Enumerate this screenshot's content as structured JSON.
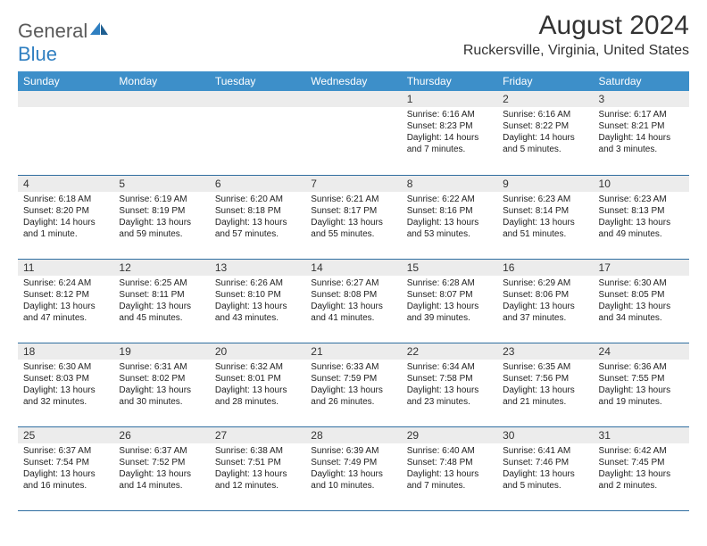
{
  "logo": {
    "text1": "General",
    "text2": "Blue"
  },
  "title": "August 2024",
  "location": "Ruckersville, Virginia, United States",
  "colors": {
    "header_bg": "#3d8fc9",
    "header_text": "#ffffff",
    "daynum_bg": "#ececec",
    "row_border": "#2f6ea0",
    "logo_gray": "#5a5a5a",
    "logo_blue": "#2f7fc1"
  },
  "weekdays": [
    "Sunday",
    "Monday",
    "Tuesday",
    "Wednesday",
    "Thursday",
    "Friday",
    "Saturday"
  ],
  "weeks": [
    [
      {
        "empty": true
      },
      {
        "empty": true
      },
      {
        "empty": true
      },
      {
        "empty": true
      },
      {
        "num": "1",
        "sunrise": "Sunrise: 6:16 AM",
        "sunset": "Sunset: 8:23 PM",
        "daylight": "Daylight: 14 hours and 7 minutes."
      },
      {
        "num": "2",
        "sunrise": "Sunrise: 6:16 AM",
        "sunset": "Sunset: 8:22 PM",
        "daylight": "Daylight: 14 hours and 5 minutes."
      },
      {
        "num": "3",
        "sunrise": "Sunrise: 6:17 AM",
        "sunset": "Sunset: 8:21 PM",
        "daylight": "Daylight: 14 hours and 3 minutes."
      }
    ],
    [
      {
        "num": "4",
        "sunrise": "Sunrise: 6:18 AM",
        "sunset": "Sunset: 8:20 PM",
        "daylight": "Daylight: 14 hours and 1 minute."
      },
      {
        "num": "5",
        "sunrise": "Sunrise: 6:19 AM",
        "sunset": "Sunset: 8:19 PM",
        "daylight": "Daylight: 13 hours and 59 minutes."
      },
      {
        "num": "6",
        "sunrise": "Sunrise: 6:20 AM",
        "sunset": "Sunset: 8:18 PM",
        "daylight": "Daylight: 13 hours and 57 minutes."
      },
      {
        "num": "7",
        "sunrise": "Sunrise: 6:21 AM",
        "sunset": "Sunset: 8:17 PM",
        "daylight": "Daylight: 13 hours and 55 minutes."
      },
      {
        "num": "8",
        "sunrise": "Sunrise: 6:22 AM",
        "sunset": "Sunset: 8:16 PM",
        "daylight": "Daylight: 13 hours and 53 minutes."
      },
      {
        "num": "9",
        "sunrise": "Sunrise: 6:23 AM",
        "sunset": "Sunset: 8:14 PM",
        "daylight": "Daylight: 13 hours and 51 minutes."
      },
      {
        "num": "10",
        "sunrise": "Sunrise: 6:23 AM",
        "sunset": "Sunset: 8:13 PM",
        "daylight": "Daylight: 13 hours and 49 minutes."
      }
    ],
    [
      {
        "num": "11",
        "sunrise": "Sunrise: 6:24 AM",
        "sunset": "Sunset: 8:12 PM",
        "daylight": "Daylight: 13 hours and 47 minutes."
      },
      {
        "num": "12",
        "sunrise": "Sunrise: 6:25 AM",
        "sunset": "Sunset: 8:11 PM",
        "daylight": "Daylight: 13 hours and 45 minutes."
      },
      {
        "num": "13",
        "sunrise": "Sunrise: 6:26 AM",
        "sunset": "Sunset: 8:10 PM",
        "daylight": "Daylight: 13 hours and 43 minutes."
      },
      {
        "num": "14",
        "sunrise": "Sunrise: 6:27 AM",
        "sunset": "Sunset: 8:08 PM",
        "daylight": "Daylight: 13 hours and 41 minutes."
      },
      {
        "num": "15",
        "sunrise": "Sunrise: 6:28 AM",
        "sunset": "Sunset: 8:07 PM",
        "daylight": "Daylight: 13 hours and 39 minutes."
      },
      {
        "num": "16",
        "sunrise": "Sunrise: 6:29 AM",
        "sunset": "Sunset: 8:06 PM",
        "daylight": "Daylight: 13 hours and 37 minutes."
      },
      {
        "num": "17",
        "sunrise": "Sunrise: 6:30 AM",
        "sunset": "Sunset: 8:05 PM",
        "daylight": "Daylight: 13 hours and 34 minutes."
      }
    ],
    [
      {
        "num": "18",
        "sunrise": "Sunrise: 6:30 AM",
        "sunset": "Sunset: 8:03 PM",
        "daylight": "Daylight: 13 hours and 32 minutes."
      },
      {
        "num": "19",
        "sunrise": "Sunrise: 6:31 AM",
        "sunset": "Sunset: 8:02 PM",
        "daylight": "Daylight: 13 hours and 30 minutes."
      },
      {
        "num": "20",
        "sunrise": "Sunrise: 6:32 AM",
        "sunset": "Sunset: 8:01 PM",
        "daylight": "Daylight: 13 hours and 28 minutes."
      },
      {
        "num": "21",
        "sunrise": "Sunrise: 6:33 AM",
        "sunset": "Sunset: 7:59 PM",
        "daylight": "Daylight: 13 hours and 26 minutes."
      },
      {
        "num": "22",
        "sunrise": "Sunrise: 6:34 AM",
        "sunset": "Sunset: 7:58 PM",
        "daylight": "Daylight: 13 hours and 23 minutes."
      },
      {
        "num": "23",
        "sunrise": "Sunrise: 6:35 AM",
        "sunset": "Sunset: 7:56 PM",
        "daylight": "Daylight: 13 hours and 21 minutes."
      },
      {
        "num": "24",
        "sunrise": "Sunrise: 6:36 AM",
        "sunset": "Sunset: 7:55 PM",
        "daylight": "Daylight: 13 hours and 19 minutes."
      }
    ],
    [
      {
        "num": "25",
        "sunrise": "Sunrise: 6:37 AM",
        "sunset": "Sunset: 7:54 PM",
        "daylight": "Daylight: 13 hours and 16 minutes."
      },
      {
        "num": "26",
        "sunrise": "Sunrise: 6:37 AM",
        "sunset": "Sunset: 7:52 PM",
        "daylight": "Daylight: 13 hours and 14 minutes."
      },
      {
        "num": "27",
        "sunrise": "Sunrise: 6:38 AM",
        "sunset": "Sunset: 7:51 PM",
        "daylight": "Daylight: 13 hours and 12 minutes."
      },
      {
        "num": "28",
        "sunrise": "Sunrise: 6:39 AM",
        "sunset": "Sunset: 7:49 PM",
        "daylight": "Daylight: 13 hours and 10 minutes."
      },
      {
        "num": "29",
        "sunrise": "Sunrise: 6:40 AM",
        "sunset": "Sunset: 7:48 PM",
        "daylight": "Daylight: 13 hours and 7 minutes."
      },
      {
        "num": "30",
        "sunrise": "Sunrise: 6:41 AM",
        "sunset": "Sunset: 7:46 PM",
        "daylight": "Daylight: 13 hours and 5 minutes."
      },
      {
        "num": "31",
        "sunrise": "Sunrise: 6:42 AM",
        "sunset": "Sunset: 7:45 PM",
        "daylight": "Daylight: 13 hours and 2 minutes."
      }
    ]
  ]
}
